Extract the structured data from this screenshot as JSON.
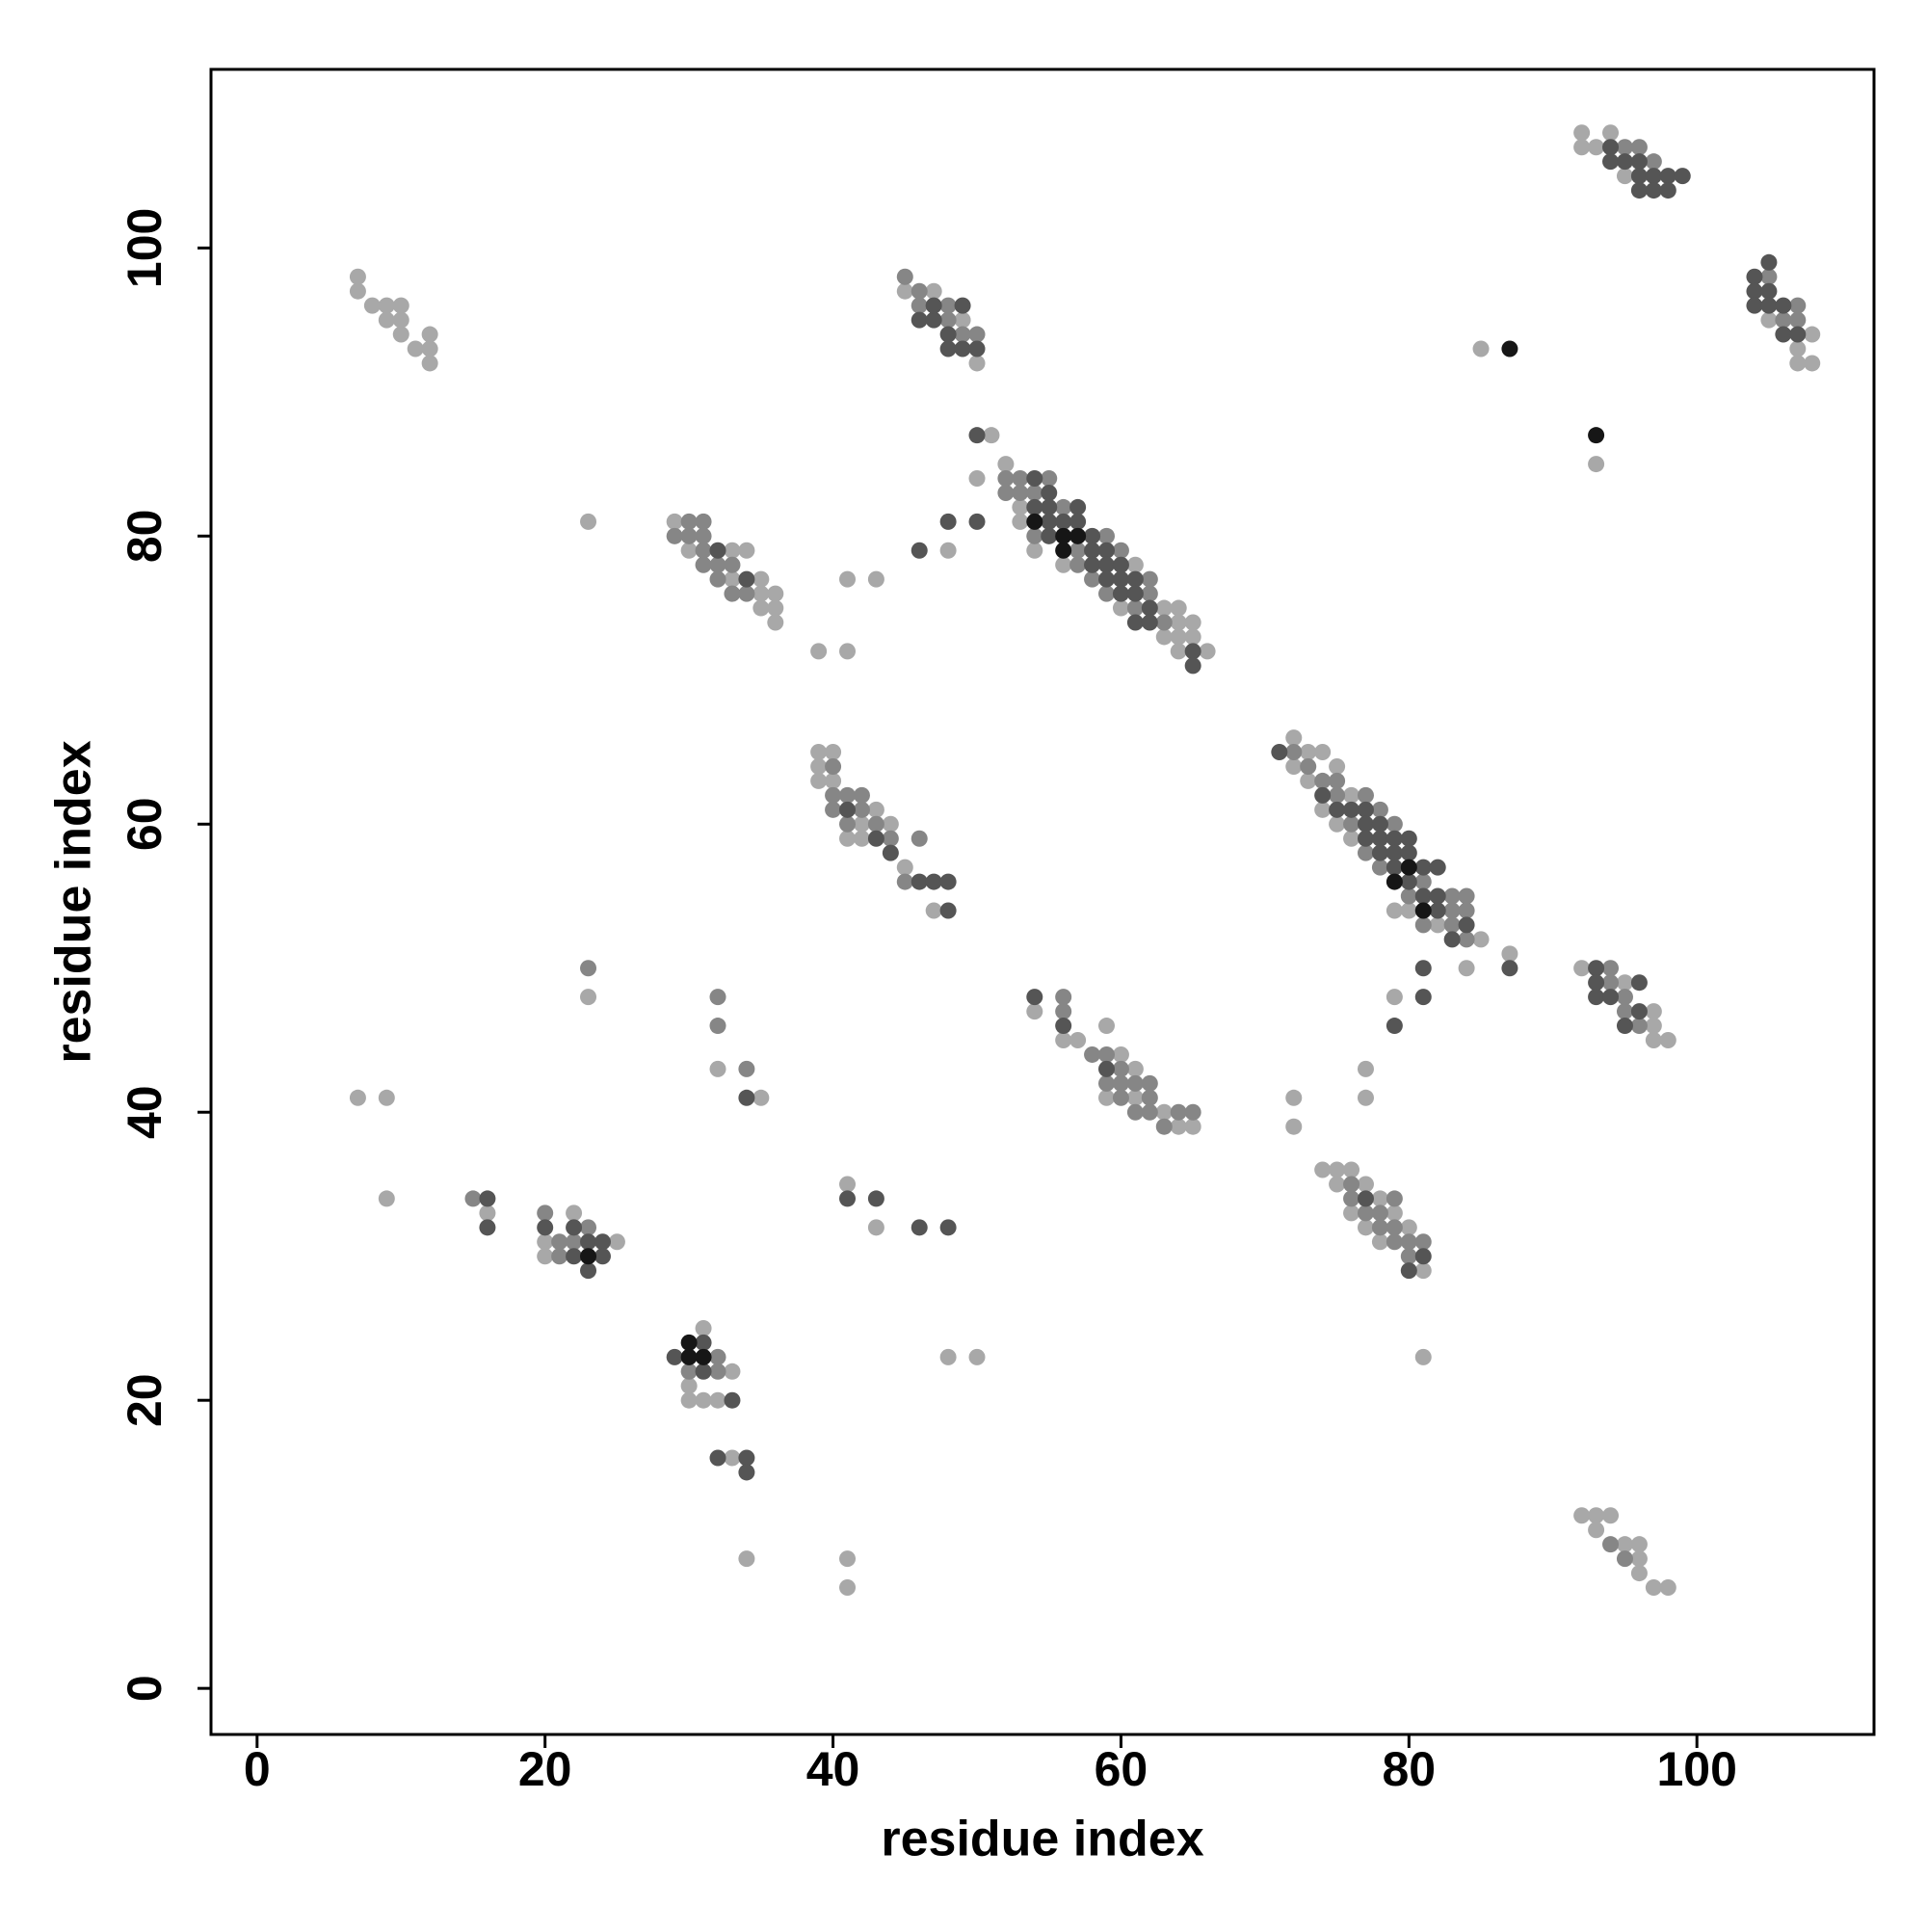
{
  "chart_data": {
    "type": "scatter",
    "x_label": "residue index",
    "y_label": "residue index",
    "xlim": [
      -3.2,
      112.3
    ],
    "ylim": [
      -3.2,
      112.4
    ],
    "xticks": [
      0,
      20,
      40,
      60,
      80,
      100
    ],
    "yticks": [
      0,
      20,
      40,
      60,
      80,
      100
    ],
    "grid": false,
    "series": [
      {
        "color": "#a8a8a8",
        "x": [
          7,
          7,
          8,
          9,
          9,
          10,
          10,
          10,
          11,
          12,
          12,
          12,
          45,
          47,
          49,
          50,
          92,
          92,
          93,
          94,
          95,
          105,
          107,
          107,
          108,
          108,
          85,
          93,
          51,
          50,
          48,
          23,
          52,
          53,
          53,
          54,
          56,
          60,
          61,
          63,
          63,
          64,
          64,
          64,
          64,
          65,
          65,
          66,
          29,
          30,
          33,
          33,
          34,
          35,
          35,
          35,
          36,
          36,
          36,
          39,
          41,
          41,
          43,
          39,
          39,
          39,
          40,
          40,
          41,
          42,
          42,
          43,
          44,
          45,
          47,
          72,
          72,
          73,
          73,
          74,
          74,
          75,
          75,
          76,
          76,
          79,
          80,
          82,
          85,
          84,
          87,
          79,
          92,
          95,
          97,
          97,
          97,
          98,
          54,
          56,
          57,
          59,
          59,
          60,
          61,
          61,
          63,
          64,
          65,
          72,
          72,
          77,
          77,
          74,
          75,
          75,
          76,
          76,
          77,
          77,
          78,
          78,
          79,
          80,
          81,
          81,
          23,
          32,
          35,
          7,
          9,
          9,
          16,
          20,
          20,
          22,
          25,
          41,
          43,
          48,
          50,
          30,
          30,
          31,
          31,
          32,
          33,
          33,
          34,
          41,
          41,
          92,
          93,
          93,
          94,
          95,
          96,
          96,
          96,
          97,
          98
        ],
        "y": [
          98,
          97,
          96,
          96,
          95,
          96,
          95,
          94,
          93,
          94,
          93,
          92,
          97,
          97,
          95,
          92,
          108,
          107,
          107,
          108,
          105,
          95,
          93,
          92,
          94,
          92,
          93,
          85,
          87,
          84,
          79,
          81,
          85,
          82,
          81,
          79,
          78,
          75,
          78,
          75,
          73,
          75,
          74,
          73,
          72,
          74,
          73,
          72,
          81,
          79,
          79,
          77,
          79,
          77,
          76,
          75,
          76,
          75,
          74,
          72,
          72,
          77,
          77,
          65,
          64,
          63,
          65,
          63,
          59,
          60,
          59,
          61,
          60,
          57,
          54,
          66,
          64,
          65,
          63,
          65,
          61,
          64,
          60,
          62,
          59,
          54,
          54,
          53,
          52,
          50,
          51,
          48,
          50,
          49,
          47,
          46,
          45,
          45,
          47,
          45,
          45,
          46,
          41,
          44,
          43,
          41,
          40,
          39,
          39,
          41,
          39,
          43,
          41,
          36,
          36,
          35,
          36,
          33,
          35,
          32,
          34,
          31,
          33,
          32,
          29,
          23,
          48,
          43,
          41,
          41,
          41,
          34,
          33,
          31,
          30,
          33,
          31,
          35,
          32,
          23,
          23,
          21,
          20,
          25,
          20,
          20,
          22,
          16,
          9,
          9,
          7,
          12,
          12,
          11,
          12,
          10,
          10,
          9,
          8,
          7,
          7
        ]
      },
      {
        "color": "#868686",
        "x": [
          45,
          46,
          46,
          48,
          48,
          49,
          50,
          95,
          96,
          97,
          105,
          106,
          107,
          107,
          52,
          52,
          53,
          53,
          54,
          54,
          55,
          56,
          57,
          57,
          58,
          59,
          59,
          60,
          61,
          62,
          62,
          63,
          29,
          30,
          30,
          31,
          31,
          31,
          31,
          32,
          32,
          33,
          33,
          34,
          40,
          40,
          40,
          41,
          41,
          42,
          42,
          43,
          44,
          45,
          46,
          72,
          73,
          74,
          75,
          75,
          76,
          77,
          77,
          78,
          78,
          79,
          80,
          81,
          81,
          83,
          83,
          83,
          84,
          84,
          84,
          94,
          94,
          95,
          95,
          96,
          56,
          56,
          58,
          59,
          59,
          60,
          60,
          60,
          61,
          61,
          62,
          62,
          62,
          63,
          64,
          65,
          76,
          76,
          77,
          78,
          78,
          79,
          79,
          79,
          80,
          80,
          81,
          23,
          32,
          32,
          34,
          15,
          20,
          21,
          21,
          22,
          23,
          30,
          32,
          32,
          94,
          95
        ],
        "y": [
          98,
          97,
          96,
          96,
          95,
          94,
          94,
          107,
          107,
          106,
          98,
          95,
          96,
          95,
          84,
          83,
          84,
          83,
          83,
          80,
          84,
          82,
          79,
          78,
          77,
          80,
          76,
          79,
          75,
          77,
          76,
          74,
          80,
          81,
          80,
          81,
          80,
          79,
          78,
          78,
          77,
          78,
          76,
          76,
          64,
          62,
          61,
          62,
          60,
          62,
          61,
          60,
          59,
          56,
          59,
          65,
          64,
          63,
          63,
          62,
          60,
          62,
          58,
          61,
          57,
          60,
          55,
          56,
          53,
          55,
          54,
          53,
          55,
          54,
          52,
          50,
          49,
          48,
          47,
          46,
          48,
          47,
          44,
          44,
          42,
          43,
          42,
          41,
          42,
          40,
          42,
          41,
          40,
          39,
          40,
          40,
          35,
          34,
          33,
          33,
          32,
          34,
          32,
          31,
          31,
          30,
          31,
          50,
          48,
          46,
          43,
          34,
          33,
          31,
          30,
          31,
          32,
          22,
          23,
          22,
          10,
          9
        ]
      },
      {
        "color": "#555555",
        "x": [
          46,
          47,
          47,
          49,
          48,
          48,
          49,
          50,
          94,
          94,
          95,
          96,
          96,
          96,
          97,
          97,
          98,
          98,
          99,
          104,
          104,
          104,
          105,
          105,
          105,
          106,
          106,
          107,
          50,
          50,
          48,
          46,
          54,
          54,
          55,
          55,
          55,
          55,
          56,
          57,
          57,
          58,
          58,
          58,
          59,
          59,
          59,
          60,
          60,
          60,
          61,
          61,
          61,
          62,
          62,
          65,
          65,
          32,
          34,
          41,
          43,
          44,
          46,
          47,
          48,
          48,
          71,
          74,
          75,
          76,
          77,
          77,
          77,
          78,
          78,
          78,
          79,
          79,
          79,
          80,
          80,
          80,
          81,
          81,
          82,
          82,
          82,
          83,
          84,
          87,
          81,
          81,
          79,
          93,
          93,
          93,
          94,
          95,
          96,
          96,
          54,
          56,
          59,
          77,
          80,
          81,
          34,
          16,
          16,
          20,
          22,
          22,
          23,
          23,
          24,
          24,
          41,
          43,
          46,
          48,
          29,
          31,
          31,
          33,
          32,
          34,
          34
        ],
        "y": [
          95,
          95,
          96,
          96,
          94,
          93,
          93,
          93,
          107,
          106,
          106,
          106,
          105,
          104,
          105,
          104,
          105,
          104,
          105,
          98,
          97,
          96,
          99,
          97,
          96,
          96,
          94,
          94,
          87,
          81,
          81,
          79,
          84,
          82,
          83,
          82,
          81,
          80,
          81,
          82,
          81,
          80,
          79,
          78,
          79,
          78,
          77,
          78,
          77,
          76,
          77,
          76,
          74,
          75,
          74,
          72,
          71,
          79,
          77,
          61,
          59,
          58,
          56,
          56,
          56,
          54,
          65,
          62,
          61,
          61,
          61,
          60,
          59,
          60,
          59,
          58,
          59,
          58,
          57,
          59,
          58,
          56,
          57,
          55,
          57,
          55,
          54,
          52,
          53,
          50,
          50,
          48,
          46,
          50,
          49,
          48,
          48,
          46,
          49,
          47,
          48,
          46,
          43,
          34,
          29,
          30,
          41,
          34,
          32,
          32,
          32,
          30,
          31,
          29,
          31,
          30,
          34,
          34,
          32,
          32,
          23,
          24,
          22,
          20,
          16,
          16,
          15
        ]
      },
      {
        "color": "#161616",
        "x": [
          87,
          93,
          54,
          56,
          56,
          57,
          79,
          80,
          81,
          23,
          30,
          30,
          31
        ],
        "y": [
          93,
          87,
          81,
          80,
          79,
          80,
          56,
          57,
          54,
          30,
          24,
          23,
          23
        ]
      }
    ]
  }
}
